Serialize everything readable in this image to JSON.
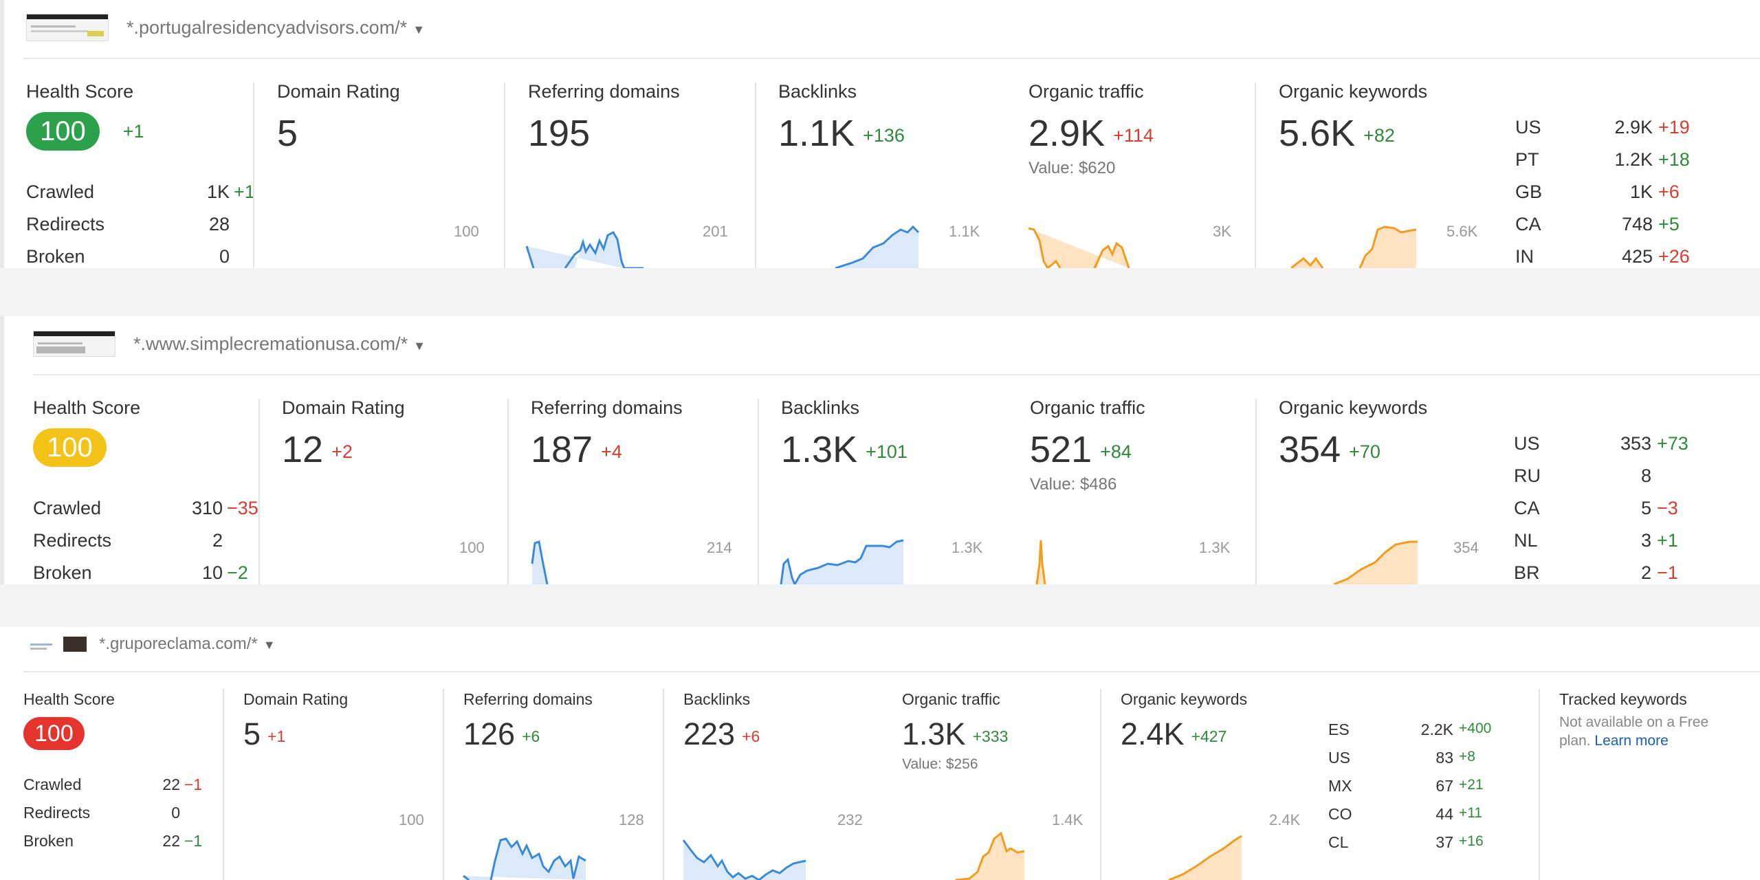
{
  "colors": {
    "green": "#2ba14b",
    "yellow": "#f3c417",
    "red": "#e5332e",
    "blue_line": "#3b8ad9",
    "orange_line": "#f39c1f"
  },
  "projects": [
    {
      "url": "*.portugalresidencyadvisors.com/*",
      "health": {
        "label": "Health Score",
        "score": "100",
        "color": "green",
        "delta": "+1",
        "rows": [
          {
            "label": "Crawled",
            "value": "1K",
            "delta": "+1",
            "sign": "pos"
          },
          {
            "label": "Redirects",
            "value": "28",
            "delta": "",
            "sign": ""
          },
          {
            "label": "Broken",
            "value": "0",
            "delta": "",
            "sign": ""
          }
        ]
      },
      "domain_rating": {
        "label": "Domain Rating",
        "value": "5",
        "delta": "",
        "sign": "",
        "chart_max": "100"
      },
      "referring_domains": {
        "label": "Referring domains",
        "value": "195",
        "delta": "",
        "sign": "",
        "chart_max": "201"
      },
      "backlinks": {
        "label": "Backlinks",
        "value": "1.1K",
        "delta": "+136",
        "sign": "pos",
        "chart_max": "1.1K"
      },
      "organic_traffic": {
        "label": "Organic traffic",
        "value": "2.9K",
        "delta": "+114",
        "sign": "neg",
        "subvalue": "Value: $620",
        "chart_max": "3K"
      },
      "organic_keywords": {
        "label": "Organic keywords",
        "value": "5.6K",
        "delta": "+82",
        "sign": "pos",
        "chart_max": "5.6K"
      },
      "countries": [
        {
          "code": "US",
          "value": "2.9K",
          "delta": "+19",
          "sign": "neg"
        },
        {
          "code": "PT",
          "value": "1.2K",
          "delta": "+18",
          "sign": "pos"
        },
        {
          "code": "GB",
          "value": "1K",
          "delta": "+6",
          "sign": "neg"
        },
        {
          "code": "CA",
          "value": "748",
          "delta": "+5",
          "sign": "pos"
        },
        {
          "code": "IN",
          "value": "425",
          "delta": "+26",
          "sign": "neg"
        }
      ]
    },
    {
      "url": "*.www.simplecremationusa.com/*",
      "health": {
        "label": "Health Score",
        "score": "100",
        "color": "yellow",
        "delta": "",
        "rows": [
          {
            "label": "Crawled",
            "value": "310",
            "delta": "−35",
            "sign": "neg"
          },
          {
            "label": "Redirects",
            "value": "2",
            "delta": "",
            "sign": ""
          },
          {
            "label": "Broken",
            "value": "10",
            "delta": "−2",
            "sign": "pos"
          }
        ]
      },
      "domain_rating": {
        "label": "Domain Rating",
        "value": "12",
        "delta": "+2",
        "sign": "neg",
        "chart_max": "100"
      },
      "referring_domains": {
        "label": "Referring domains",
        "value": "187",
        "delta": "+4",
        "sign": "neg",
        "chart_max": "214"
      },
      "backlinks": {
        "label": "Backlinks",
        "value": "1.3K",
        "delta": "+101",
        "sign": "pos",
        "chart_max": "1.3K"
      },
      "organic_traffic": {
        "label": "Organic traffic",
        "value": "521",
        "delta": "+84",
        "sign": "pos",
        "subvalue": "Value: $486",
        "chart_max": "1.3K"
      },
      "organic_keywords": {
        "label": "Organic keywords",
        "value": "354",
        "delta": "+70",
        "sign": "pos",
        "chart_max": "354"
      },
      "countries": [
        {
          "code": "US",
          "value": "353",
          "delta": "+73",
          "sign": "pos"
        },
        {
          "code": "RU",
          "value": "8",
          "delta": "",
          "sign": ""
        },
        {
          "code": "CA",
          "value": "5",
          "delta": "−3",
          "sign": "neg"
        },
        {
          "code": "NL",
          "value": "3",
          "delta": "+1",
          "sign": "pos"
        },
        {
          "code": "BR",
          "value": "2",
          "delta": "−1",
          "sign": "neg"
        }
      ]
    },
    {
      "url": "*.gruporeclama.com/*",
      "health": {
        "label": "Health Score",
        "score": "100",
        "color": "red",
        "delta": "",
        "rows": [
          {
            "label": "Crawled",
            "value": "22",
            "delta": "−1",
            "sign": "neg"
          },
          {
            "label": "Redirects",
            "value": "0",
            "delta": "",
            "sign": ""
          },
          {
            "label": "Broken",
            "value": "22",
            "delta": "−1",
            "sign": "pos"
          }
        ]
      },
      "domain_rating": {
        "label": "Domain Rating",
        "value": "5",
        "delta": "+1",
        "sign": "neg",
        "chart_max": "100"
      },
      "referring_domains": {
        "label": "Referring domains",
        "value": "126",
        "delta": "+6",
        "sign": "pos",
        "chart_max": "128"
      },
      "backlinks": {
        "label": "Backlinks",
        "value": "223",
        "delta": "+6",
        "sign": "neg",
        "chart_max": "232"
      },
      "organic_traffic": {
        "label": "Organic traffic",
        "value": "1.3K",
        "delta": "+333",
        "sign": "pos",
        "subvalue": "Value: $256",
        "chart_max": "1.4K"
      },
      "organic_keywords": {
        "label": "Organic keywords",
        "value": "2.4K",
        "delta": "+427",
        "sign": "pos",
        "chart_max": "2.4K"
      },
      "countries": [
        {
          "code": "ES",
          "value": "2.2K",
          "delta": "+400",
          "sign": "pos"
        },
        {
          "code": "US",
          "value": "83",
          "delta": "+8",
          "sign": "pos"
        },
        {
          "code": "MX",
          "value": "67",
          "delta": "+21",
          "sign": "pos"
        },
        {
          "code": "CO",
          "value": "44",
          "delta": "+11",
          "sign": "pos"
        },
        {
          "code": "CL",
          "value": "37",
          "delta": "+16",
          "sign": "pos"
        }
      ],
      "tracked": {
        "label": "Tracked keywords",
        "text": "Not available on a Free plan.",
        "link": "Learn more"
      }
    }
  ]
}
